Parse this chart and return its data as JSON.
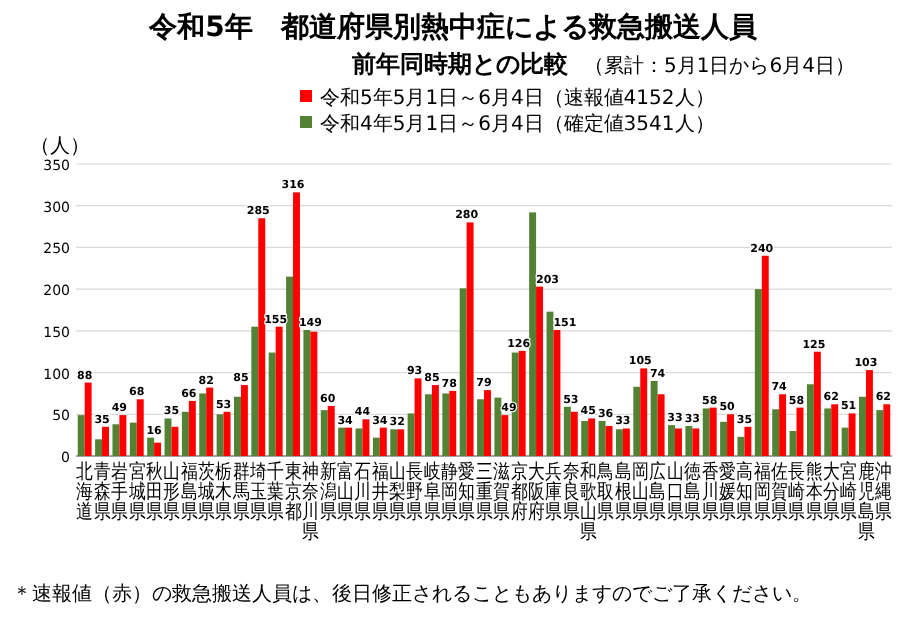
{
  "chart_data": {
    "type": "bar",
    "title": "令和5年　都道府県別熱中症による救急搬送人員",
    "subtitle": "前年同時期との比較",
    "ylabel": "（人）",
    "annotations": [
      "（累計：5月1日から6月4日）",
      "＊速報値（赤）の救急搬送人員は、後日修正されることもありますのでご了承ください。"
    ],
    "categories": [
      "北海道",
      "青森県",
      "岩手県",
      "宮城県",
      "秋田県",
      "山形県",
      "福島県",
      "茨城県",
      "栃木県",
      "群馬県",
      "埼玉県",
      "千葉県",
      "東京都",
      "神奈川県",
      "新潟県",
      "富山県",
      "石川県",
      "福井県",
      "山梨県",
      "長野県",
      "岐阜県",
      "静岡県",
      "愛知県",
      "三重県",
      "滋賀県",
      "京都府",
      "大阪府",
      "兵庫県",
      "奈良県",
      "和歌山県",
      "鳥取県",
      "島根県",
      "岡山県",
      "広島県",
      "山口県",
      "徳島県",
      "香川県",
      "愛媛県",
      "高知県",
      "福岡県",
      "佐賀県",
      "長崎県",
      "熊本県",
      "大分県",
      "宮崎県",
      "鹿児島県",
      "沖縄県"
    ],
    "series": [
      {
        "name": "令和4年5月1日～6月4日（確定値3541人）",
        "color": "#548235",
        "values": [
          49,
          20,
          38,
          40,
          22,
          45,
          53,
          75,
          50,
          71,
          155,
          124,
          215,
          151,
          55,
          34,
          33,
          22,
          32,
          51,
          74,
          75,
          201,
          68,
          70,
          124,
          292,
          173,
          59,
          42,
          42,
          32,
          83,
          90,
          37,
          36,
          57,
          41,
          23,
          200,
          56,
          30,
          86,
          57,
          34,
          71,
          55
        ]
      },
      {
        "name": "令和5年5月1日～6月4日（速報値4152人）",
        "color": "#ff0000",
        "values": [
          88,
          35,
          49,
          68,
          16,
          35,
          66,
          82,
          53,
          85,
          285,
          155,
          316,
          149,
          60,
          34,
          44,
          34,
          32,
          93,
          85,
          78,
          280,
          79,
          49,
          126,
          203,
          151,
          53,
          45,
          36,
          33,
          105,
          74,
          33,
          33,
          58,
          50,
          35,
          240,
          74,
          58,
          125,
          62,
          51,
          103,
          62
        ],
        "value_labels": [
          "88",
          "35",
          "49",
          "68",
          "16",
          "35",
          "66",
          "82",
          "53",
          "85",
          "285",
          "155",
          "316",
          "149",
          "60",
          "34",
          "44",
          "34",
          "32",
          "93",
          "85",
          "78",
          "280",
          "79",
          "49",
          "126",
          "203",
          "151",
          "53",
          "45",
          "36",
          "33",
          "105",
          "74",
          "33",
          "33",
          "58",
          "50",
          "35",
          "240",
          "74",
          "58",
          "125",
          "62",
          "51",
          "103",
          "62"
        ]
      }
    ],
    "ylim": [
      0,
      350
    ],
    "yticks": [
      0,
      50,
      100,
      150,
      200,
      250,
      300,
      350
    ],
    "grid": "y",
    "legend": "top"
  }
}
